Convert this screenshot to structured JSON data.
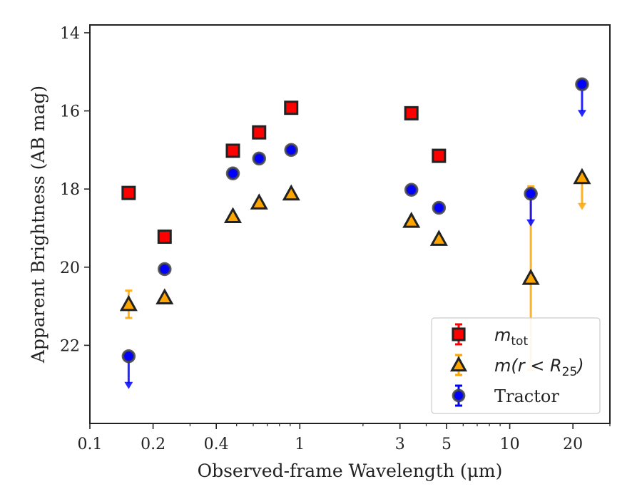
{
  "chart_data": {
    "type": "scatter",
    "xlabel": "Observed-frame Wavelength (μm)",
    "ylabel": "Apparent Brightness (AB mag)",
    "xscale": "log",
    "xlim": [
      0.1,
      30
    ],
    "ylim": [
      24,
      13.8
    ],
    "y_inverted": true,
    "x_ticks": [
      {
        "value": 0.1,
        "label": "0.1"
      },
      {
        "value": 0.2,
        "label": "0.2"
      },
      {
        "value": 0.4,
        "label": "0.4"
      },
      {
        "value": 1,
        "label": "1"
      },
      {
        "value": 3,
        "label": "3"
      },
      {
        "value": 5,
        "label": "5"
      },
      {
        "value": 10,
        "label": "10"
      },
      {
        "value": 20,
        "label": "20"
      }
    ],
    "y_ticks": [
      {
        "value": 14,
        "label": "14"
      },
      {
        "value": 16,
        "label": "16"
      },
      {
        "value": 18,
        "label": "18"
      },
      {
        "value": 20,
        "label": "20"
      },
      {
        "value": 22,
        "label": "22"
      }
    ],
    "legend_position": "lower-right",
    "series": [
      {
        "name": "m_tot",
        "legend_label": {
          "base": "m",
          "sub": "tot"
        },
        "marker": "square",
        "color": "#ff0000",
        "points": [
          {
            "x": 0.153,
            "y": 18.1
          },
          {
            "x": 0.227,
            "y": 19.22
          },
          {
            "x": 0.48,
            "y": 17.02
          },
          {
            "x": 0.64,
            "y": 16.55
          },
          {
            "x": 0.91,
            "y": 15.92
          },
          {
            "x": 3.4,
            "y": 16.06
          },
          {
            "x": 4.6,
            "y": 17.15
          }
        ]
      },
      {
        "name": "m(r<R25)",
        "legend_label": {
          "base": "m(r < R",
          "sub": "25",
          "tail": ")"
        },
        "marker": "triangle",
        "color": "#ffa500",
        "points": [
          {
            "x": 0.153,
            "y": 20.95,
            "yerr": 0.35
          },
          {
            "x": 0.227,
            "y": 20.78
          },
          {
            "x": 0.48,
            "y": 18.7
          },
          {
            "x": 0.64,
            "y": 18.35
          },
          {
            "x": 0.91,
            "y": 18.12
          },
          {
            "x": 3.4,
            "y": 18.82
          },
          {
            "x": 4.6,
            "y": 19.28
          },
          {
            "x": 12.6,
            "y": 20.28,
            "yerr_low": 2.35,
            "yerr_high": 2.35
          },
          {
            "x": 22.1,
            "y": 17.7,
            "upper_limit": true
          }
        ]
      },
      {
        "name": "Tractor",
        "legend_label": {
          "base": "Tractor"
        },
        "marker": "circle",
        "color": "#0000ff",
        "points": [
          {
            "x": 0.153,
            "y": 22.28,
            "upper_limit": true
          },
          {
            "x": 0.227,
            "y": 20.05
          },
          {
            "x": 0.48,
            "y": 17.6
          },
          {
            "x": 0.64,
            "y": 17.22
          },
          {
            "x": 0.91,
            "y": 17.0
          },
          {
            "x": 3.4,
            "y": 18.02
          },
          {
            "x": 4.6,
            "y": 18.48
          },
          {
            "x": 12.6,
            "y": 18.12,
            "upper_limit": true
          },
          {
            "x": 22.1,
            "y": 15.32,
            "upper_limit": true
          }
        ]
      }
    ]
  }
}
